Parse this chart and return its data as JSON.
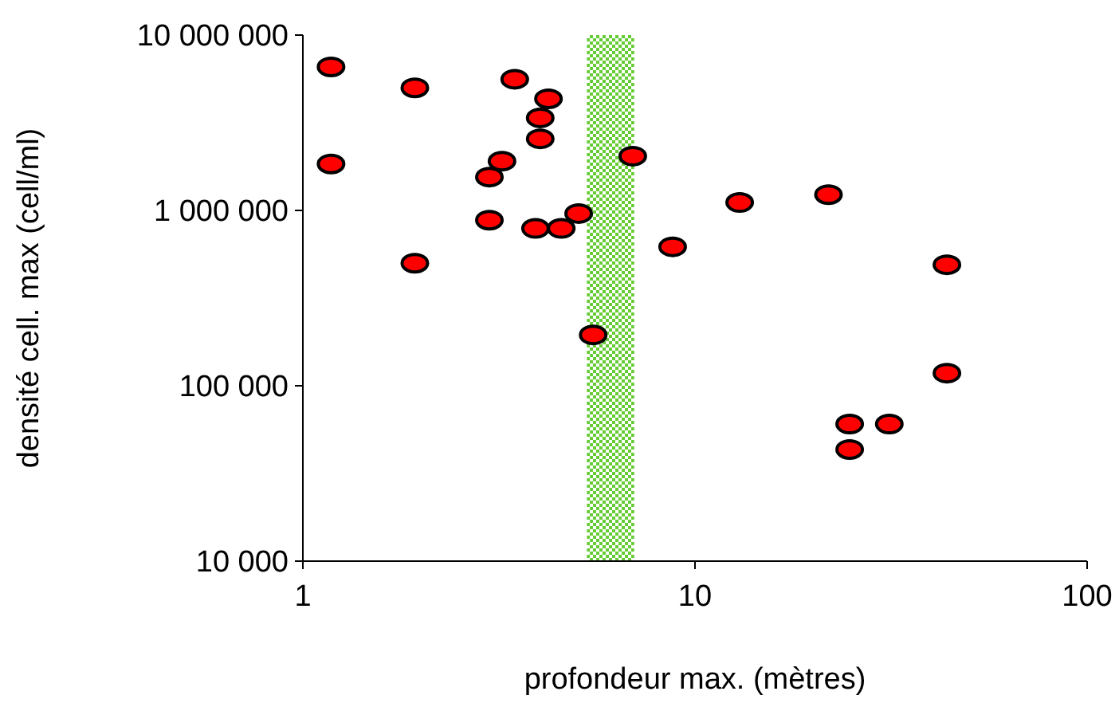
{
  "chart_data": {
    "type": "scatter",
    "xlabel": "profondeur max. (mètres)",
    "ylabel": "densité cell. max (cell/ml)",
    "log": "xy",
    "grid": false,
    "marker": "circle",
    "xlim": [
      1,
      100
    ],
    "xticks": [
      1,
      10,
      100
    ],
    "ylim": [
      10000,
      10000000
    ],
    "yticks": [
      {
        "value": 10000,
        "label": "10 000"
      },
      {
        "value": 100000,
        "label": "100 000"
      },
      {
        "value": 1000000,
        "label": "1 000 000"
      },
      {
        "value": 10000000,
        "label": "10 000 000"
      }
    ],
    "bands": [
      {
        "axis": "x",
        "from": 5.3,
        "to": 7.0,
        "color": "#66cc33"
      }
    ],
    "series": [
      {
        "color": "#ff0000",
        "x": [
          1.18,
          1.18,
          1.93,
          1.93,
          3.47,
          4.23,
          4.03,
          4.03,
          3.22,
          2.99,
          2.99,
          3.92,
          4.56,
          5.05,
          5.5,
          6.94,
          8.77,
          13.0,
          21.9,
          24.8,
          24.8,
          31.3,
          43.9,
          43.9
        ],
        "values": [
          6580000,
          1840000,
          5000000,
          500000,
          5600000,
          4330000,
          3370000,
          2560000,
          1910000,
          1550000,
          880000,
          790000,
          790000,
          960000,
          195000,
          2040000,
          620000,
          1110000,
          1230000,
          60500,
          43300,
          60500,
          490000,
          118000
        ]
      }
    ]
  }
}
